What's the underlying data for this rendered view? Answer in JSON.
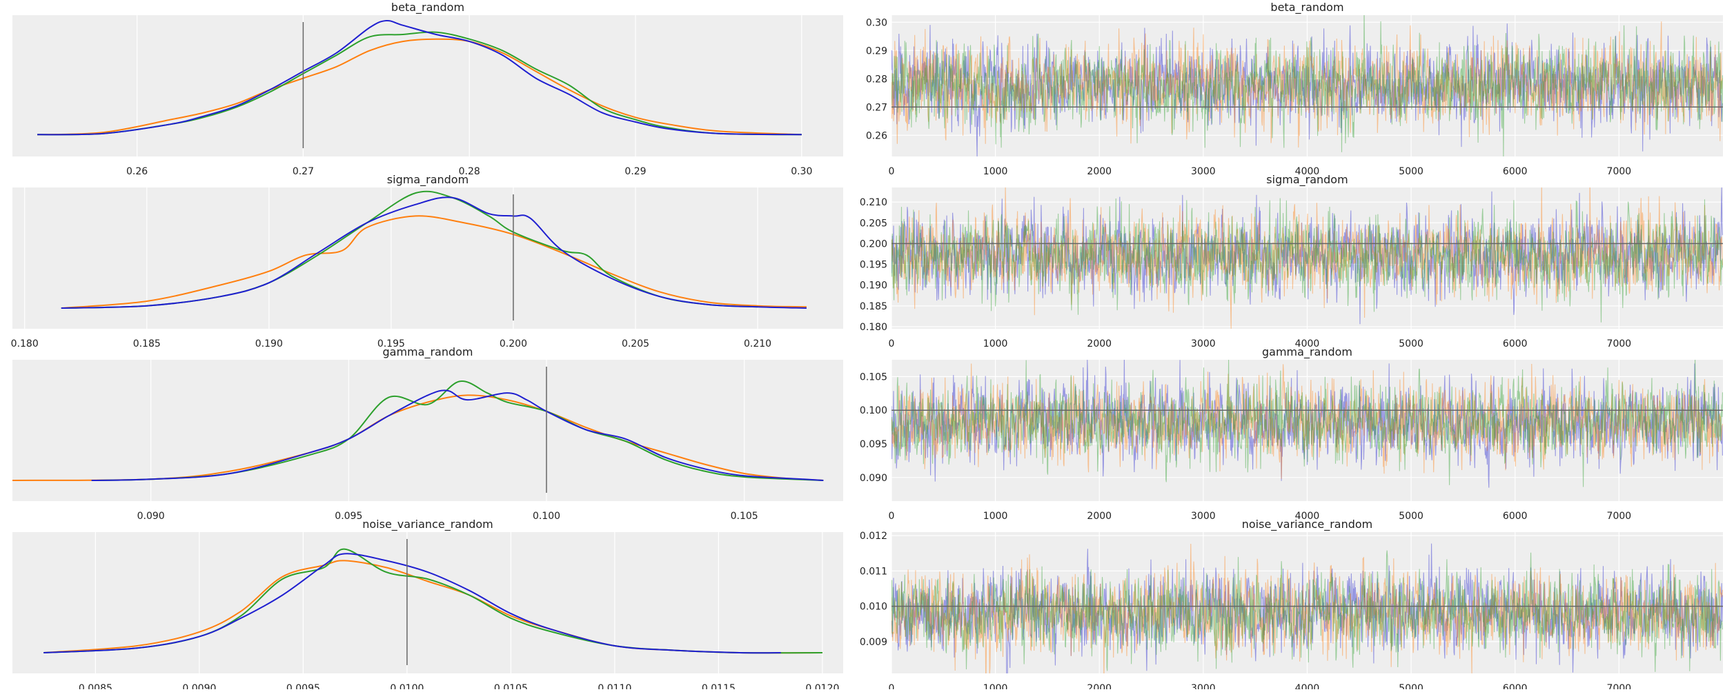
{
  "colors": {
    "background": "#ffffff",
    "panel": "#eeeeee",
    "grid": "#ffffff",
    "text": "#222222",
    "reference_line": "#666666",
    "chains": [
      "#1f1fd0",
      "#ff7f0e",
      "#2ca02c"
    ]
  },
  "chart_data": [
    {
      "type": "line",
      "kind": "density",
      "title": "beta_random",
      "x_range": [
        0.2525,
        0.3025
      ],
      "x_ticks": [
        "0.26",
        "0.27",
        "0.28",
        "0.29",
        "0.30"
      ],
      "x_tick_values": [
        0.26,
        0.27,
        0.28,
        0.29,
        0.3
      ],
      "reference_value": 0.27,
      "grid": true,
      "y_ticks_shown": false,
      "series": [
        {
          "x": [
            0.254,
            0.258,
            0.262,
            0.264,
            0.266,
            0.268,
            0.27,
            0.272,
            0.274,
            0.275,
            0.276,
            0.278,
            0.28,
            0.282,
            0.284,
            0.286,
            0.288,
            0.29,
            0.292,
            0.295,
            0.3
          ],
          "y": [
            0.01,
            0.02,
            0.1,
            0.17,
            0.26,
            0.4,
            0.56,
            0.72,
            0.94,
            1.0,
            0.96,
            0.88,
            0.82,
            0.7,
            0.5,
            0.36,
            0.2,
            0.12,
            0.06,
            0.02,
            0.01
          ]
        },
        {
          "x": [
            0.254,
            0.258,
            0.262,
            0.264,
            0.266,
            0.268,
            0.27,
            0.272,
            0.274,
            0.276,
            0.278,
            0.28,
            0.282,
            0.284,
            0.286,
            0.288,
            0.29,
            0.292,
            0.295,
            0.3
          ],
          "y": [
            0.01,
            0.03,
            0.14,
            0.2,
            0.28,
            0.4,
            0.5,
            0.6,
            0.74,
            0.82,
            0.84,
            0.82,
            0.72,
            0.56,
            0.4,
            0.26,
            0.16,
            0.1,
            0.04,
            0.01
          ]
        },
        {
          "x": [
            0.254,
            0.258,
            0.262,
            0.264,
            0.266,
            0.268,
            0.27,
            0.272,
            0.274,
            0.276,
            0.278,
            0.28,
            0.282,
            0.284,
            0.286,
            0.288,
            0.29,
            0.292,
            0.295,
            0.3
          ],
          "y": [
            0.01,
            0.02,
            0.1,
            0.16,
            0.25,
            0.38,
            0.54,
            0.7,
            0.86,
            0.88,
            0.9,
            0.84,
            0.74,
            0.58,
            0.44,
            0.24,
            0.14,
            0.07,
            0.02,
            0.01
          ]
        }
      ]
    },
    {
      "type": "line",
      "kind": "trace",
      "title": "beta_random",
      "x_range": [
        0,
        8000
      ],
      "y_range": [
        0.2525,
        0.3025
      ],
      "x_ticks": [
        "0",
        "1000",
        "2000",
        "3000",
        "4000",
        "5000",
        "6000",
        "7000"
      ],
      "x_tick_values": [
        0,
        1000,
        2000,
        3000,
        4000,
        5000,
        6000,
        7000
      ],
      "y_ticks": [
        "0.26",
        "0.27",
        "0.28",
        "0.29",
        "0.30"
      ],
      "y_tick_values": [
        0.26,
        0.27,
        0.28,
        0.29,
        0.3
      ],
      "reference_value": 0.27,
      "grid": true,
      "samples_per_chain": 8000,
      "chain_mean": 0.2778,
      "chain_sd": 0.0071
    },
    {
      "type": "line",
      "kind": "density",
      "title": "sigma_random",
      "x_range": [
        0.1795,
        0.2135
      ],
      "x_ticks": [
        "0.180",
        "0.185",
        "0.190",
        "0.195",
        "0.200",
        "0.205",
        "0.210"
      ],
      "x_tick_values": [
        0.18,
        0.185,
        0.19,
        0.195,
        0.2,
        0.205,
        0.21
      ],
      "reference_value": 0.2,
      "grid": true,
      "y_ticks_shown": false,
      "series": [
        {
          "x": [
            0.1815,
            0.185,
            0.188,
            0.19,
            0.192,
            0.194,
            0.196,
            0.1975,
            0.199,
            0.2,
            0.2007,
            0.202,
            0.204,
            0.206,
            0.208,
            0.21,
            0.212
          ],
          "y": [
            0.0,
            0.02,
            0.1,
            0.22,
            0.48,
            0.74,
            0.9,
            0.96,
            0.82,
            0.8,
            0.78,
            0.5,
            0.26,
            0.1,
            0.03,
            0.01,
            0.0
          ]
        },
        {
          "x": [
            0.1815,
            0.185,
            0.188,
            0.19,
            0.1915,
            0.193,
            0.194,
            0.196,
            0.198,
            0.2,
            0.202,
            0.204,
            0.206,
            0.208,
            0.21,
            0.212
          ],
          "y": [
            0.0,
            0.06,
            0.2,
            0.32,
            0.46,
            0.5,
            0.7,
            0.8,
            0.74,
            0.64,
            0.48,
            0.3,
            0.14,
            0.05,
            0.02,
            0.01
          ]
        },
        {
          "x": [
            0.1815,
            0.185,
            0.188,
            0.19,
            0.192,
            0.194,
            0.196,
            0.1975,
            0.199,
            0.2,
            0.202,
            0.203,
            0.204,
            0.206,
            0.208,
            0.21
          ],
          "y": [
            0.0,
            0.02,
            0.1,
            0.22,
            0.46,
            0.74,
            1.0,
            0.96,
            0.8,
            0.66,
            0.5,
            0.46,
            0.28,
            0.1,
            0.03,
            0.01
          ]
        }
      ]
    },
    {
      "type": "line",
      "kind": "trace",
      "title": "sigma_random",
      "x_range": [
        0,
        8000
      ],
      "y_range": [
        0.1795,
        0.2135
      ],
      "x_ticks": [
        "0",
        "1000",
        "2000",
        "3000",
        "4000",
        "5000",
        "6000",
        "7000"
      ],
      "x_tick_values": [
        0,
        1000,
        2000,
        3000,
        4000,
        5000,
        6000,
        7000
      ],
      "y_ticks": [
        "0.180",
        "0.185",
        "0.190",
        "0.195",
        "0.200",
        "0.205",
        "0.210"
      ],
      "y_tick_values": [
        0.18,
        0.185,
        0.19,
        0.195,
        0.2,
        0.205,
        0.21
      ],
      "reference_value": 0.2,
      "grid": true,
      "samples_per_chain": 8000,
      "chain_mean": 0.1972,
      "chain_sd": 0.0047
    },
    {
      "type": "line",
      "kind": "density",
      "title": "gamma_random",
      "x_range": [
        0.0865,
        0.1075
      ],
      "x_ticks": [
        "0.090",
        "0.095",
        "0.100",
        "0.105"
      ],
      "x_tick_values": [
        0.09,
        0.095,
        0.1,
        0.105
      ],
      "reference_value": 0.1,
      "grid": true,
      "y_ticks_shown": false,
      "series": [
        {
          "x": [
            0.0885,
            0.09,
            0.092,
            0.094,
            0.095,
            0.096,
            0.097,
            0.0975,
            0.098,
            0.099,
            0.0995,
            0.1,
            0.101,
            0.102,
            0.103,
            0.104,
            0.105,
            0.1065,
            0.107
          ],
          "y": [
            0.0,
            0.01,
            0.06,
            0.24,
            0.36,
            0.56,
            0.74,
            0.78,
            0.7,
            0.76,
            0.7,
            0.6,
            0.44,
            0.36,
            0.2,
            0.1,
            0.04,
            0.01,
            0.0
          ]
        },
        {
          "x": [
            0.0865,
            0.09,
            0.092,
            0.094,
            0.095,
            0.096,
            0.097,
            0.098,
            0.099,
            0.1,
            0.101,
            0.102,
            0.103,
            0.104,
            0.105,
            0.106,
            0.107
          ],
          "y": [
            0.0,
            0.01,
            0.08,
            0.24,
            0.36,
            0.56,
            0.68,
            0.74,
            0.7,
            0.6,
            0.46,
            0.34,
            0.24,
            0.14,
            0.06,
            0.02,
            0.0
          ]
        },
        {
          "x": [
            0.0885,
            0.09,
            0.092,
            0.094,
            0.095,
            0.096,
            0.097,
            0.0978,
            0.0985,
            0.099,
            0.1,
            0.101,
            0.102,
            0.103,
            0.104,
            0.105,
            0.107
          ],
          "y": [
            0.0,
            0.01,
            0.06,
            0.22,
            0.36,
            0.72,
            0.66,
            0.86,
            0.76,
            0.68,
            0.6,
            0.44,
            0.34,
            0.18,
            0.08,
            0.03,
            0.0
          ]
        }
      ]
    },
    {
      "type": "line",
      "kind": "trace",
      "title": "gamma_random",
      "x_range": [
        0,
        8000
      ],
      "y_range": [
        0.0865,
        0.1075
      ],
      "x_ticks": [
        "0",
        "1000",
        "2000",
        "3000",
        "4000",
        "5000",
        "6000",
        "7000"
      ],
      "x_tick_values": [
        0,
        1000,
        2000,
        3000,
        4000,
        5000,
        6000,
        7000
      ],
      "y_ticks": [
        "0.090",
        "0.095",
        "0.100",
        "0.105"
      ],
      "y_tick_values": [
        0.09,
        0.095,
        0.1,
        0.105
      ],
      "reference_value": 0.1,
      "grid": true,
      "samples_per_chain": 8000,
      "chain_mean": 0.0982,
      "chain_sd": 0.0028
    },
    {
      "type": "line",
      "kind": "density",
      "title": "noise_variance_random",
      "x_range": [
        0.0081,
        0.0121
      ],
      "x_ticks": [
        "0.0085",
        "0.0090",
        "0.0095",
        "0.0100",
        "0.0105",
        "0.0110",
        "0.0115",
        "0.0120"
      ],
      "x_tick_values": [
        0.0085,
        0.009,
        0.0095,
        0.01,
        0.0105,
        0.011,
        0.0115,
        0.012
      ],
      "reference_value": 0.01,
      "grid": true,
      "y_ticks_shown": false,
      "series": [
        {
          "x": [
            0.00825,
            0.0087,
            0.009,
            0.0092,
            0.0094,
            0.0096,
            0.0097,
            0.0099,
            0.0101,
            0.0103,
            0.0105,
            0.0107,
            0.011,
            0.0113,
            0.0116,
            0.0118
          ],
          "y": [
            0.0,
            0.04,
            0.14,
            0.3,
            0.5,
            0.76,
            0.86,
            0.8,
            0.7,
            0.54,
            0.34,
            0.2,
            0.06,
            0.02,
            0.0,
            0.0
          ]
        },
        {
          "x": [
            0.00825,
            0.0087,
            0.009,
            0.0092,
            0.0094,
            0.0096,
            0.0097,
            0.0099,
            0.0101,
            0.0103,
            0.0105,
            0.0107,
            0.011,
            0.0113,
            0.0116,
            0.012
          ],
          "y": [
            0.0,
            0.06,
            0.18,
            0.36,
            0.66,
            0.76,
            0.8,
            0.74,
            0.62,
            0.5,
            0.32,
            0.2,
            0.06,
            0.02,
            0.0,
            0.0
          ]
        },
        {
          "x": [
            0.00825,
            0.0087,
            0.009,
            0.0092,
            0.0094,
            0.0096,
            0.0097,
            0.0099,
            0.0101,
            0.0103,
            0.0105,
            0.0107,
            0.011,
            0.0113,
            0.0116,
            0.012
          ],
          "y": [
            0.0,
            0.04,
            0.14,
            0.32,
            0.64,
            0.74,
            0.9,
            0.7,
            0.64,
            0.5,
            0.3,
            0.18,
            0.06,
            0.02,
            0.0,
            0.0
          ]
        }
      ]
    },
    {
      "type": "line",
      "kind": "trace",
      "title": "noise_variance_random",
      "x_range": [
        0,
        8000
      ],
      "y_range": [
        0.0081,
        0.0121
      ],
      "x_ticks": [
        "0",
        "1000",
        "2000",
        "3000",
        "4000",
        "5000",
        "6000",
        "7000"
      ],
      "x_tick_values": [
        0,
        1000,
        2000,
        3000,
        4000,
        5000,
        6000,
        7000
      ],
      "y_ticks": [
        "0.009",
        "0.010",
        "0.011",
        "0.012"
      ],
      "y_tick_values": [
        0.009,
        0.01,
        0.011,
        0.012
      ],
      "reference_value": 0.01,
      "grid": true,
      "samples_per_chain": 8000,
      "chain_mean": 0.0098,
      "chain_sd": 0.00055
    }
  ]
}
